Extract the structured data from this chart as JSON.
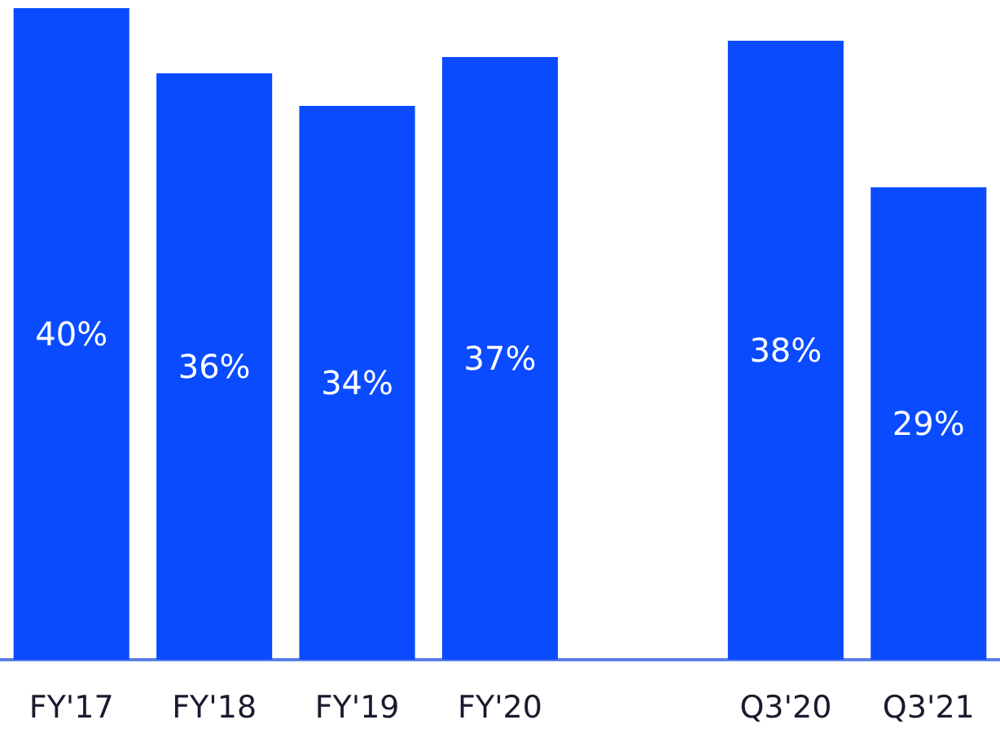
{
  "chart_data": {
    "type": "bar",
    "categories": [
      "FY'17",
      "FY'18",
      "FY'19",
      "FY'20",
      null,
      "Q3'20",
      "Q3'21"
    ],
    "values": [
      40,
      36,
      34,
      37,
      null,
      38,
      29
    ],
    "value_labels": [
      "40%",
      "36%",
      "34%",
      "37%",
      null,
      "38%",
      "29%"
    ],
    "color": "#0a4bff",
    "grid": false
  }
}
